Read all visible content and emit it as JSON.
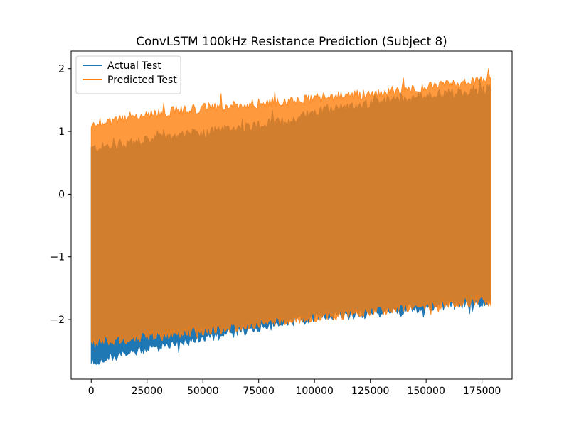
{
  "chart_data": {
    "type": "line",
    "title": "ConvLSTM 100kHz Resistance Prediction (Subject 8)",
    "xlabel": "",
    "ylabel": "",
    "xlim": [
      -9000,
      188500
    ],
    "ylim": [
      -2.95,
      2.28
    ],
    "x_ticks": [
      0,
      25000,
      50000,
      75000,
      100000,
      125000,
      150000,
      175000
    ],
    "y_ticks": [
      -2,
      -1,
      0,
      1,
      2
    ],
    "grid": false,
    "legend_position": "upper-left",
    "series": [
      {
        "name": "Actual Test",
        "color": "#1f77b4",
        "envelope": {
          "x": [
            0,
            25000,
            50000,
            75000,
            90000,
            100000,
            125000,
            150000,
            175000,
            179000
          ],
          "upper": [
            0.7,
            0.83,
            0.95,
            1.08,
            1.15,
            1.3,
            1.42,
            1.55,
            1.63,
            1.65
          ],
          "lower": [
            -2.65,
            -2.45,
            -2.3,
            -2.1,
            -2.0,
            -1.95,
            -1.88,
            -1.78,
            -1.7,
            -1.7
          ]
        }
      },
      {
        "name": "Predicted Test",
        "color": "#ff7f0e",
        "envelope": {
          "x": [
            0,
            25000,
            50000,
            75000,
            90000,
            100000,
            125000,
            150000,
            175000,
            179000
          ],
          "upper": [
            1.1,
            1.25,
            1.35,
            1.42,
            1.48,
            1.5,
            1.58,
            1.68,
            1.78,
            1.82
          ],
          "lower": [
            -2.35,
            -2.25,
            -2.15,
            -2.05,
            -1.98,
            -1.95,
            -1.85,
            -1.75,
            -1.68,
            -1.7
          ]
        }
      }
    ]
  }
}
